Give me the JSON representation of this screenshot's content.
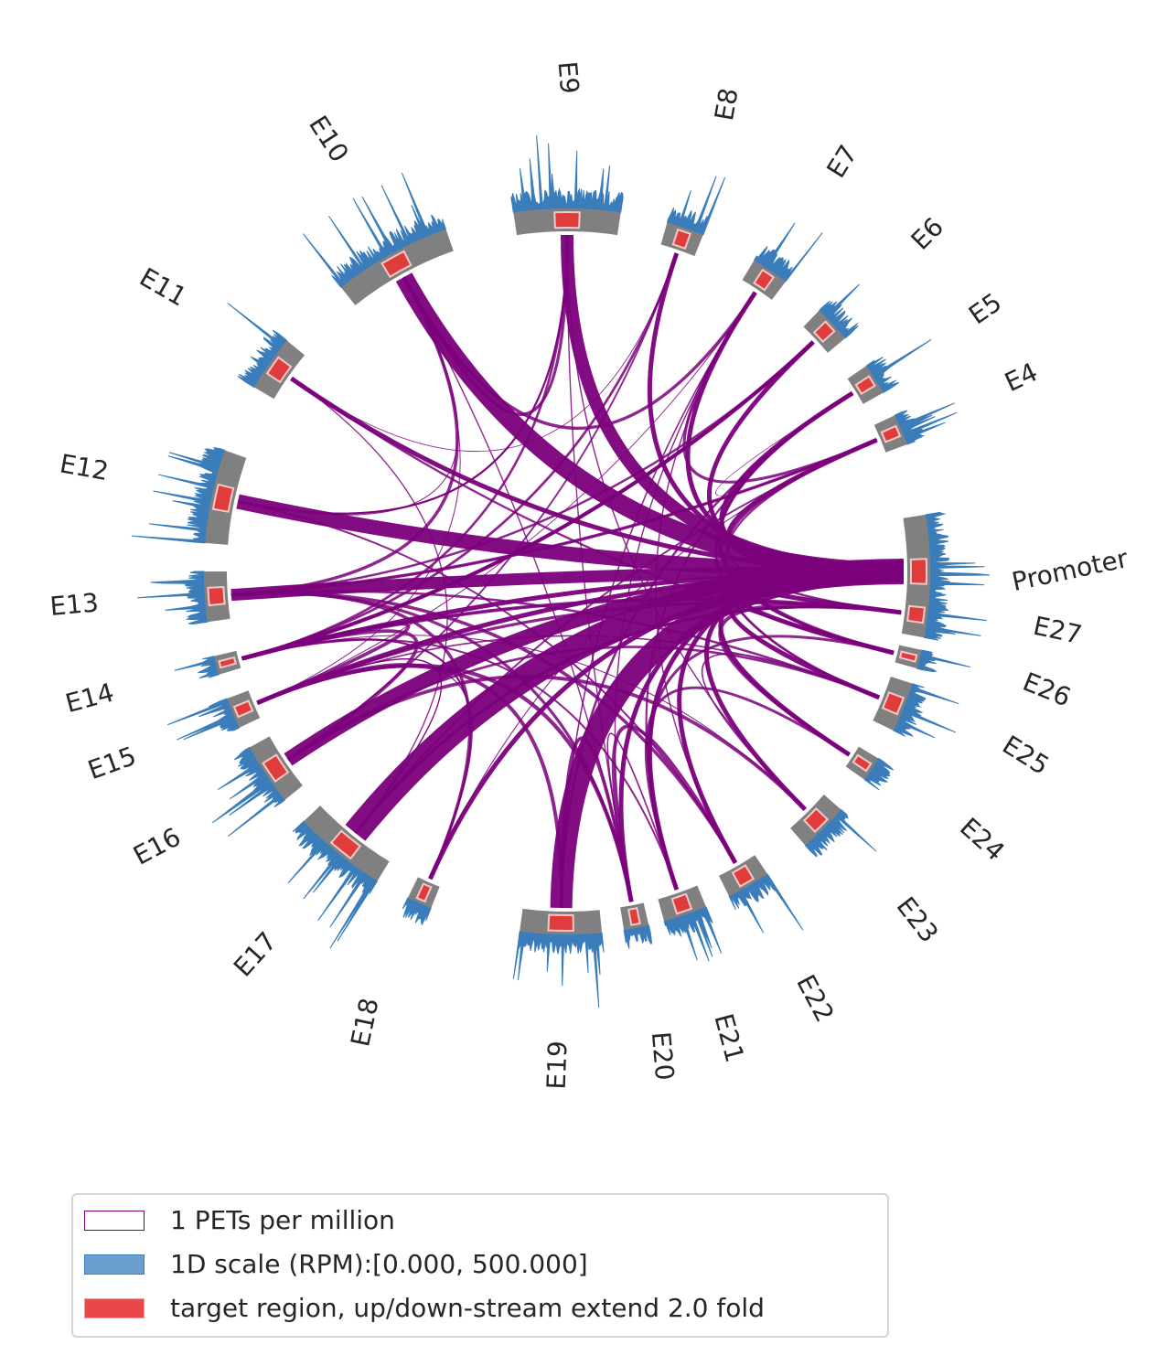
{
  "diagram": {
    "type": "chromatin-loop circos plot",
    "colors": {
      "segment": "#808080",
      "coverage": "#3a7dba",
      "target": "#e03c3c",
      "loop": "#7b007b"
    },
    "segments": [
      {
        "label": "Promoter"
      },
      {
        "label": "E4"
      },
      {
        "label": "E5"
      },
      {
        "label": "E6"
      },
      {
        "label": "E7"
      },
      {
        "label": "E8"
      },
      {
        "label": "E9"
      },
      {
        "label": "E10"
      },
      {
        "label": "E11"
      },
      {
        "label": "E12"
      },
      {
        "label": "E13"
      },
      {
        "label": "E14"
      },
      {
        "label": "E15"
      },
      {
        "label": "E16"
      },
      {
        "label": "E17"
      },
      {
        "label": "E18"
      },
      {
        "label": "E19"
      },
      {
        "label": "E20"
      },
      {
        "label": "E21"
      },
      {
        "label": "E22"
      },
      {
        "label": "E23"
      },
      {
        "label": "E24"
      },
      {
        "label": "E25"
      },
      {
        "label": "E26"
      },
      {
        "label": "E27"
      }
    ]
  },
  "legend": {
    "items": [
      {
        "label": "1 PETs per million",
        "kind": "loop"
      },
      {
        "label": "1D scale (RPM):[0.000, 500.000]",
        "kind": "coverage"
      },
      {
        "label": "target region, up/down-stream extend 2.0 fold",
        "kind": "target"
      }
    ]
  }
}
